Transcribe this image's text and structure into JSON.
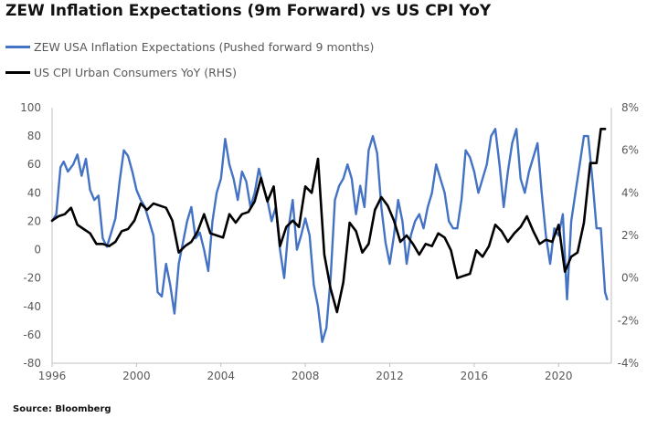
{
  "chart_data": {
    "type": "line",
    "title": "ZEW Inflation Expectations (9m Forward) vs US CPI YoY",
    "source": "Source:  Bloomberg",
    "x_ticks": [
      "1996",
      "2000",
      "2004",
      "2008",
      "2012",
      "2016",
      "2020"
    ],
    "xlim": [
      1996,
      2022.5
    ],
    "left_axis": {
      "ylim": [
        -80,
        100
      ],
      "ticks": [
        100,
        80,
        60,
        40,
        20,
        0,
        -20,
        -40,
        -60,
        -80
      ],
      "tick_labels": [
        "100",
        "80",
        "60",
        "40",
        "20",
        "0",
        "-20",
        "-40",
        "-60",
        "-80"
      ]
    },
    "right_axis": {
      "ylim": [
        -4,
        8
      ],
      "ticks": [
        8,
        6,
        4,
        2,
        0,
        -2,
        -4
      ],
      "tick_labels": [
        "8%",
        "6%",
        "4%",
        "2%",
        "0%",
        "-2%",
        "-4%"
      ]
    },
    "grid": false,
    "legend_position": "top-left",
    "series": [
      {
        "name": "ZEW USA Inflation Expectations (Pushed forward 9 months)",
        "axis": "left",
        "color": "#4472C4",
        "x": [
          1996.0,
          1996.2,
          1996.4,
          1996.55,
          1996.75,
          1997.0,
          1997.2,
          1997.4,
          1997.6,
          1997.8,
          1998.0,
          1998.2,
          1998.4,
          1998.6,
          1998.8,
          1999.0,
          1999.2,
          1999.4,
          1999.6,
          1999.8,
          2000.0,
          2000.2,
          2000.4,
          2000.6,
          2000.8,
          2001.0,
          2001.2,
          2001.4,
          2001.6,
          2001.8,
          2002.0,
          2002.2,
          2002.4,
          2002.6,
          2002.8,
          2003.0,
          2003.2,
          2003.4,
          2003.6,
          2003.8,
          2004.0,
          2004.2,
          2004.4,
          2004.6,
          2004.8,
          2005.0,
          2005.2,
          2005.4,
          2005.6,
          2005.8,
          2006.0,
          2006.2,
          2006.4,
          2006.6,
          2006.8,
          2007.0,
          2007.2,
          2007.4,
          2007.6,
          2007.8,
          2008.0,
          2008.2,
          2008.4,
          2008.6,
          2008.8,
          2009.0,
          2009.2,
          2009.4,
          2009.6,
          2009.8,
          2010.0,
          2010.2,
          2010.4,
          2010.6,
          2010.8,
          2011.0,
          2011.2,
          2011.4,
          2011.6,
          2011.8,
          2012.0,
          2012.2,
          2012.4,
          2012.6,
          2012.8,
          2013.0,
          2013.2,
          2013.4,
          2013.6,
          2013.8,
          2014.0,
          2014.2,
          2014.4,
          2014.6,
          2014.8,
          2015.0,
          2015.2,
          2015.4,
          2015.6,
          2015.8,
          2016.0,
          2016.2,
          2016.4,
          2016.6,
          2016.8,
          2017.0,
          2017.2,
          2017.4,
          2017.6,
          2017.8,
          2018.0,
          2018.2,
          2018.4,
          2018.6,
          2018.8,
          2019.0,
          2019.2,
          2019.4,
          2019.6,
          2019.8,
          2020.0,
          2020.2,
          2020.4,
          2020.6,
          2020.8,
          2021.0,
          2021.2,
          2021.4,
          2021.6,
          2021.8,
          2022.0,
          2022.2,
          2022.3
        ],
        "values": [
          20,
          25,
          58,
          62,
          55,
          60,
          67,
          52,
          64,
          42,
          35,
          38,
          8,
          2,
          12,
          22,
          48,
          70,
          66,
          55,
          42,
          35,
          30,
          20,
          10,
          -30,
          -33,
          -10,
          -25,
          -45,
          -10,
          5,
          20,
          30,
          8,
          12,
          0,
          -15,
          20,
          40,
          50,
          78,
          60,
          50,
          35,
          55,
          48,
          30,
          40,
          57,
          45,
          35,
          20,
          30,
          0,
          -20,
          15,
          35,
          0,
          10,
          22,
          10,
          -25,
          -40,
          -65,
          -55,
          -20,
          35,
          45,
          50,
          60,
          50,
          25,
          45,
          30,
          70,
          80,
          68,
          30,
          5,
          -10,
          10,
          35,
          20,
          -10,
          10,
          20,
          25,
          15,
          30,
          40,
          60,
          50,
          40,
          20,
          15,
          15,
          35,
          70,
          65,
          55,
          40,
          50,
          60,
          80,
          85,
          60,
          30,
          55,
          75,
          85,
          50,
          40,
          55,
          65,
          75,
          40,
          10,
          -10,
          15,
          10,
          25,
          -35,
          20,
          40,
          60,
          80,
          80,
          50,
          15,
          15,
          -30,
          -35
        ]
      },
      {
        "name": "US CPI Urban Consumers YoY (RHS)",
        "axis": "right",
        "color": "#000000",
        "x": [
          1996.0,
          1996.3,
          1996.6,
          1996.9,
          1997.2,
          1997.5,
          1997.8,
          1998.1,
          1998.4,
          1998.7,
          1999.0,
          1999.3,
          1999.6,
          1999.9,
          2000.2,
          2000.5,
          2000.8,
          2001.1,
          2001.4,
          2001.7,
          2002.0,
          2002.3,
          2002.6,
          2002.9,
          2003.2,
          2003.5,
          2003.8,
          2004.1,
          2004.4,
          2004.7,
          2005.0,
          2005.3,
          2005.6,
          2005.9,
          2006.2,
          2006.5,
          2006.8,
          2007.1,
          2007.4,
          2007.7,
          2008.0,
          2008.3,
          2008.6,
          2008.9,
          2009.2,
          2009.5,
          2009.8,
          2010.1,
          2010.4,
          2010.7,
          2011.0,
          2011.3,
          2011.6,
          2011.9,
          2012.2,
          2012.5,
          2012.8,
          2013.1,
          2013.4,
          2013.7,
          2014.0,
          2014.3,
          2014.6,
          2014.9,
          2015.2,
          2015.5,
          2015.8,
          2016.1,
          2016.4,
          2016.7,
          2017.0,
          2017.3,
          2017.6,
          2017.9,
          2018.2,
          2018.5,
          2018.8,
          2019.1,
          2019.4,
          2019.7,
          2020.0,
          2020.3,
          2020.6,
          2020.9,
          2021.2,
          2021.5,
          2021.8,
          2022.0,
          2022.2
        ],
        "values": [
          2.7,
          2.9,
          3.0,
          3.3,
          2.5,
          2.3,
          2.1,
          1.6,
          1.6,
          1.5,
          1.7,
          2.2,
          2.3,
          2.7,
          3.5,
          3.2,
          3.5,
          3.4,
          3.3,
          2.7,
          1.2,
          1.5,
          1.7,
          2.2,
          3.0,
          2.1,
          2.0,
          1.9,
          3.0,
          2.6,
          3.0,
          3.1,
          3.6,
          4.7,
          3.6,
          4.3,
          1.5,
          2.4,
          2.7,
          2.4,
          4.3,
          4.0,
          5.6,
          1.1,
          -0.5,
          -1.6,
          -0.2,
          2.6,
          2.2,
          1.2,
          1.6,
          3.2,
          3.8,
          3.4,
          2.7,
          1.7,
          2.0,
          1.6,
          1.1,
          1.6,
          1.5,
          2.1,
          1.9,
          1.3,
          0.0,
          0.1,
          0.2,
          1.3,
          1.0,
          1.5,
          2.5,
          2.2,
          1.7,
          2.1,
          2.4,
          2.9,
          2.2,
          1.6,
          1.8,
          1.7,
          2.5,
          0.3,
          1.0,
          1.2,
          2.6,
          5.4,
          5.4,
          7.0,
          7.0
        ]
      }
    ]
  }
}
